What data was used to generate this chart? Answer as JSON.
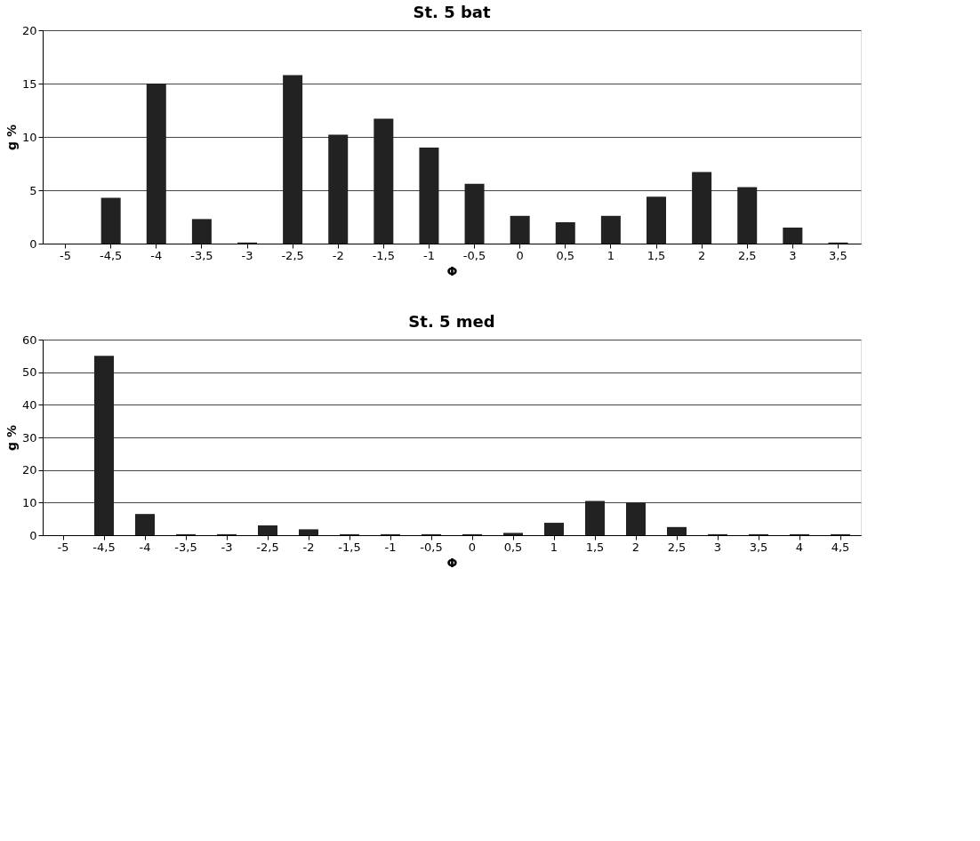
{
  "chart_data": [
    {
      "type": "bar",
      "title": "St. 5 bat",
      "xlabel": "Φ",
      "ylabel": "g %",
      "categories": [
        "-5",
        "-4,5",
        "-4",
        "-3,5",
        "-3",
        "-2,5",
        "-2",
        "-1,5",
        "-1",
        "-0,5",
        "0",
        "0,5",
        "1",
        "1,5",
        "2",
        "2,5",
        "3",
        "3,5"
      ],
      "values": [
        0,
        4.3,
        15,
        2.3,
        0.1,
        15.8,
        10.2,
        11.7,
        9,
        5.6,
        2.6,
        2.0,
        2.6,
        4.4,
        6.7,
        5.3,
        1.5,
        0.1
      ],
      "color": "#222222",
      "ylim": [
        0,
        20
      ],
      "yticks": [
        0,
        5,
        10,
        15,
        20
      ],
      "grid": "y"
    },
    {
      "type": "bar",
      "title": "St. 5 med",
      "xlabel": "Φ",
      "ylabel": "g %",
      "categories": [
        "-5",
        "-4,5",
        "-4",
        "-3,5",
        "-3",
        "-2,5",
        "-2",
        "-1,5",
        "-1",
        "-0,5",
        "0",
        "0,5",
        "1",
        "1,5",
        "2",
        "2,5",
        "3",
        "3,5",
        "4",
        "4,5"
      ],
      "values": [
        0,
        55,
        6.5,
        0.3,
        0.3,
        3,
        1.8,
        0.3,
        0.3,
        0.3,
        0.3,
        0.7,
        3.8,
        10.5,
        10,
        2.5,
        0.3,
        0.3,
        0.3,
        0.3
      ],
      "color": "#222222",
      "ylim": [
        0,
        60
      ],
      "yticks": [
        0,
        10,
        20,
        30,
        40,
        50,
        60
      ],
      "grid": "y"
    }
  ]
}
